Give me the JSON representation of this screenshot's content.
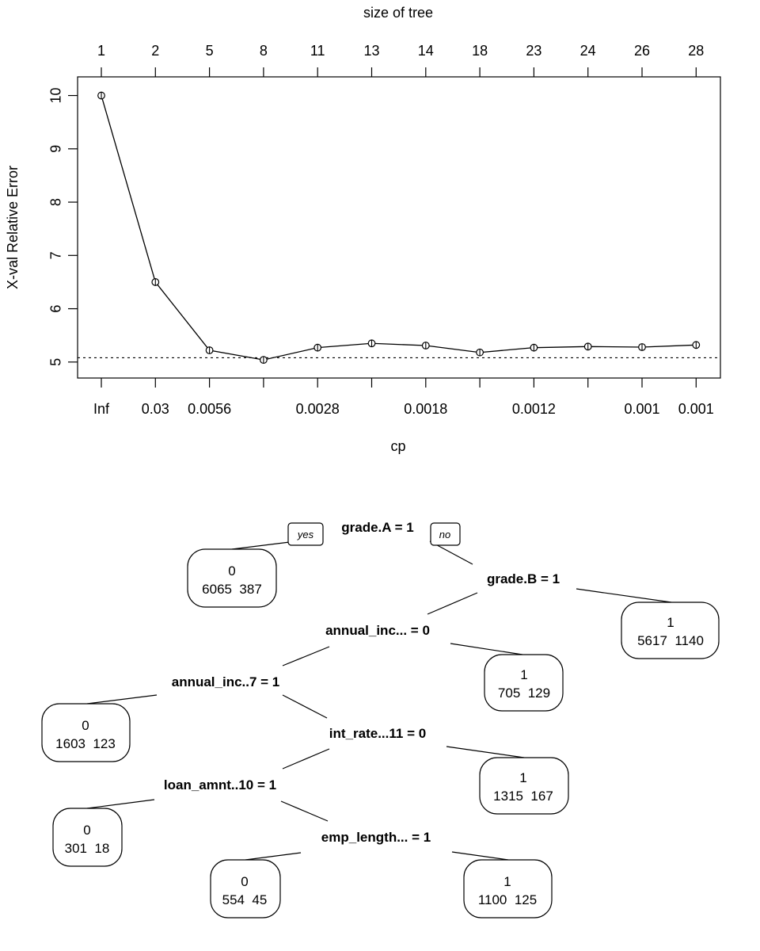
{
  "chart_data": [
    {
      "type": "line",
      "xlabel": "cp",
      "ylabel": "X-val Relative Error",
      "top_axis_label": "size of tree",
      "size_of_tree": [
        "1",
        "2",
        "5",
        "8",
        "11",
        "13",
        "14",
        "18",
        "23",
        "24",
        "26",
        "28"
      ],
      "cp_tick_labels": [
        "Inf",
        "0.03",
        "0.0056",
        "",
        "0.0028",
        "",
        "0.0018",
        "",
        "0.0012",
        "",
        "0.001",
        "0.001"
      ],
      "values": [
        10.0,
        6.5,
        5.22,
        5.04,
        5.27,
        5.35,
        5.31,
        5.18,
        5.27,
        5.29,
        5.28,
        5.32
      ],
      "reference_line": 5.08,
      "ylim": [
        4.7,
        10.35
      ],
      "yticks": [
        "5",
        "6",
        "7",
        "8",
        "9",
        "10"
      ],
      "grid": false
    },
    {
      "type": "tree",
      "yes_label": "yes",
      "no_label": "no",
      "splits": [
        "grade.A = 1",
        "grade.B = 1",
        "annual_inc... = 0",
        "annual_inc..7 = 1",
        "int_rate...11 = 0",
        "loan_amnt..10 = 1",
        "emp_length... = 1"
      ],
      "leaves": [
        {
          "class": "0",
          "counts": "6065  387"
        },
        {
          "class": "1",
          "counts": "5617  1140"
        },
        {
          "class": "1",
          "counts": "705  129"
        },
        {
          "class": "0",
          "counts": "1603  123"
        },
        {
          "class": "1",
          "counts": "1315  167"
        },
        {
          "class": "0",
          "counts": "301  18"
        },
        {
          "class": "0",
          "counts": "554  45"
        },
        {
          "class": "1",
          "counts": "1100  125"
        }
      ]
    }
  ]
}
